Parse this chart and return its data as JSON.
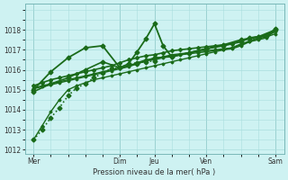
{
  "xlabel": "Pression niveau de la mer( hPa )",
  "bg_color": "#cef2f2",
  "grid_color": "#aadddd",
  "line_color": "#1a6b1a",
  "ylim": [
    1011.8,
    1019.3
  ],
  "yticks": [
    1012,
    1013,
    1014,
    1015,
    1016,
    1017,
    1018
  ],
  "xtick_labels": [
    "Mer",
    "Dim",
    "Jeu",
    "Ven",
    "Sam"
  ],
  "xtick_positions": [
    0,
    10,
    14,
    20,
    28
  ],
  "vline_positions": [
    0,
    10,
    14,
    20,
    28
  ],
  "xlim": [
    -1,
    29
  ],
  "n_points": 29,
  "series": [
    {
      "x": [
        0,
        1,
        2,
        3,
        4,
        5,
        6,
        7,
        8,
        9,
        10,
        11,
        12,
        13,
        14,
        15,
        16,
        17,
        18,
        19,
        20,
        21,
        22,
        23,
        24,
        25,
        26,
        27,
        28
      ],
      "y": [
        1012.5,
        1013.2,
        1013.9,
        1014.5,
        1015.0,
        1015.2,
        1015.35,
        1015.5,
        1015.6,
        1015.7,
        1015.8,
        1015.9,
        1016.0,
        1016.1,
        1016.2,
        1016.3,
        1016.4,
        1016.5,
        1016.6,
        1016.7,
        1016.8,
        1016.9,
        1017.0,
        1017.1,
        1017.3,
        1017.4,
        1017.5,
        1017.6,
        1018.0
      ],
      "lw": 1.0,
      "ls": "-",
      "marker": "D",
      "ms": 1.5,
      "zorder": 2
    },
    {
      "x": [
        0,
        1,
        2,
        3,
        4,
        5,
        6,
        7,
        8,
        9,
        10,
        11,
        12,
        13,
        14,
        15,
        16,
        17,
        18,
        19,
        20,
        21,
        22,
        23,
        24,
        25,
        26,
        27,
        28
      ],
      "y": [
        1015.05,
        1015.15,
        1015.25,
        1015.35,
        1015.45,
        1015.55,
        1015.65,
        1015.75,
        1015.85,
        1015.95,
        1016.05,
        1016.15,
        1016.3,
        1016.45,
        1016.5,
        1016.6,
        1016.7,
        1016.75,
        1016.8,
        1016.85,
        1016.9,
        1016.95,
        1017.0,
        1017.05,
        1017.2,
        1017.4,
        1017.55,
        1017.65,
        1017.8
      ],
      "lw": 1.0,
      "ls": "-",
      "marker": "D",
      "ms": 1.5,
      "zorder": 2
    },
    {
      "x": [
        0,
        1,
        2,
        3,
        4,
        5,
        6,
        7,
        8,
        9,
        10,
        11,
        12,
        13,
        14,
        15,
        16,
        17,
        18,
        19,
        20,
        21,
        22,
        23,
        24,
        25,
        26,
        27,
        28
      ],
      "y": [
        1015.1,
        1015.2,
        1015.3,
        1015.4,
        1015.5,
        1015.6,
        1015.7,
        1015.8,
        1015.9,
        1016.0,
        1016.1,
        1016.2,
        1016.35,
        1016.5,
        1016.55,
        1016.65,
        1016.75,
        1016.8,
        1016.85,
        1016.9,
        1016.95,
        1017.0,
        1017.05,
        1017.1,
        1017.25,
        1017.45,
        1017.6,
        1017.7,
        1017.9
      ],
      "lw": 1.0,
      "ls": "-",
      "marker": "D",
      "ms": 1.5,
      "zorder": 2
    },
    {
      "x": [
        0,
        1,
        2,
        3,
        4,
        5,
        6,
        7,
        8,
        9,
        10,
        11,
        12,
        13,
        14,
        15,
        16,
        17,
        18,
        19,
        20,
        21,
        22,
        23,
        24,
        25,
        26,
        27,
        28
      ],
      "y": [
        1015.2,
        1015.35,
        1015.5,
        1015.6,
        1015.7,
        1015.8,
        1015.9,
        1016.0,
        1016.1,
        1016.2,
        1016.35,
        1016.5,
        1016.6,
        1016.7,
        1016.75,
        1016.85,
        1016.95,
        1017.0,
        1017.05,
        1017.1,
        1017.15,
        1017.2,
        1017.25,
        1017.3,
        1017.45,
        1017.55,
        1017.65,
        1017.75,
        1018.0
      ],
      "lw": 1.2,
      "ls": "-",
      "marker": "D",
      "ms": 2.0,
      "zorder": 3
    },
    {
      "x": [
        0,
        2,
        4,
        6,
        8,
        10,
        12,
        14,
        16,
        18,
        20,
        22,
        24,
        26,
        28
      ],
      "y": [
        1014.9,
        1015.3,
        1015.6,
        1016.0,
        1016.4,
        1016.1,
        1016.3,
        1016.6,
        1016.65,
        1016.85,
        1017.05,
        1017.25,
        1017.5,
        1017.65,
        1018.0
      ],
      "lw": 1.2,
      "ls": "-",
      "marker": "D",
      "ms": 2.5,
      "zorder": 3
    },
    {
      "x": [
        0,
        2,
        4,
        6,
        8,
        10,
        11,
        12,
        13,
        14,
        15,
        16,
        18,
        20,
        22,
        24,
        25,
        26,
        27,
        28
      ],
      "y": [
        1015.0,
        1015.9,
        1016.6,
        1017.1,
        1017.2,
        1016.1,
        1016.3,
        1016.9,
        1017.55,
        1018.3,
        1017.2,
        1016.65,
        1016.85,
        1017.05,
        1017.2,
        1017.4,
        1017.6,
        1017.65,
        1017.7,
        1018.05
      ],
      "lw": 1.3,
      "ls": "-",
      "marker": "D",
      "ms": 2.5,
      "zorder": 4
    },
    {
      "x": [
        0,
        1,
        2,
        3,
        4,
        5,
        6,
        7,
        8,
        9,
        10,
        11,
        12,
        13,
        14
      ],
      "y": [
        1012.5,
        1013.0,
        1013.6,
        1014.1,
        1014.7,
        1015.1,
        1015.3,
        1015.6,
        1015.85,
        1016.05,
        1016.1,
        1016.3,
        1016.35,
        1016.4,
        1016.45
      ],
      "lw": 1.2,
      "ls": ":",
      "marker": "D",
      "ms": 2.5,
      "zorder": 5
    }
  ]
}
